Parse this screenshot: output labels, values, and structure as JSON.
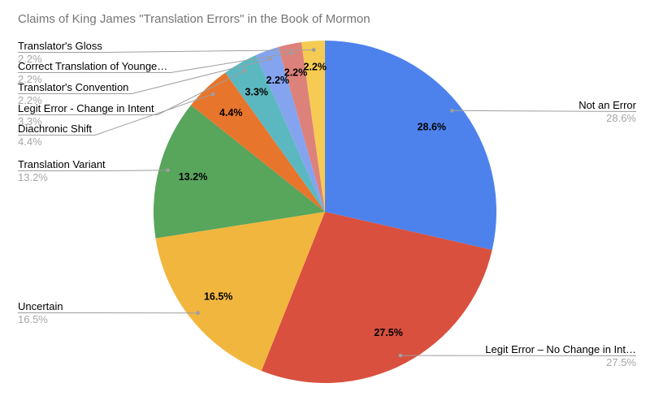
{
  "title": "Claims of King James \"Translation Errors\" in the Book of Mormon",
  "colors": {
    "background": "#ffffff",
    "title_text": "#757575",
    "callout_name_text": "#000000",
    "callout_percent_text": "#a6a6a6",
    "leader_line": "#9e9e9e",
    "leader_dot": "#9e9e9e",
    "slice_percent_text": "#000000"
  },
  "chart_data": {
    "type": "pie",
    "title": "Claims of King James \"Translation Errors\" in the Book of Mormon",
    "direction": "clockwise",
    "start_angle_deg": 0,
    "grid": false,
    "legend_position": "outside-callout-labels",
    "slices": [
      {
        "label": "Not an Error",
        "value": 28.6,
        "pct_label": "28.6%",
        "color": "#4D82EC",
        "label_side": "right"
      },
      {
        "label": "Legit Error – No Change in Int…",
        "value": 27.5,
        "pct_label": "27.5%",
        "color": "#D9503F",
        "label_side": "right"
      },
      {
        "label": "Uncertain",
        "value": 16.5,
        "pct_label": "16.5%",
        "color": "#F1B63E",
        "label_side": "left"
      },
      {
        "label": "Translation Variant",
        "value": 13.2,
        "pct_label": "13.2%",
        "color": "#58A55C",
        "label_side": "left"
      },
      {
        "label": "Diachronic Shift",
        "value": 4.4,
        "pct_label": "4.4%",
        "color": "#E8752C",
        "label_side": "left"
      },
      {
        "label": "Legit Error - Change in Intent",
        "value": 3.3,
        "pct_label": "3.3%",
        "color": "#5CB8C0",
        "label_side": "left"
      },
      {
        "label": "Translator's Convention",
        "value": 2.2,
        "pct_label": "2.2%",
        "color": "#84A4EF",
        "label_side": "left"
      },
      {
        "label": "Correct Translation of Younge…",
        "value": 2.2,
        "pct_label": "2.2%",
        "color": "#DD817B",
        "label_side": "left"
      },
      {
        "label": "Translator's Gloss",
        "value": 2.2,
        "pct_label": "2.2%",
        "color": "#F5CB53",
        "label_side": "left"
      }
    ]
  }
}
